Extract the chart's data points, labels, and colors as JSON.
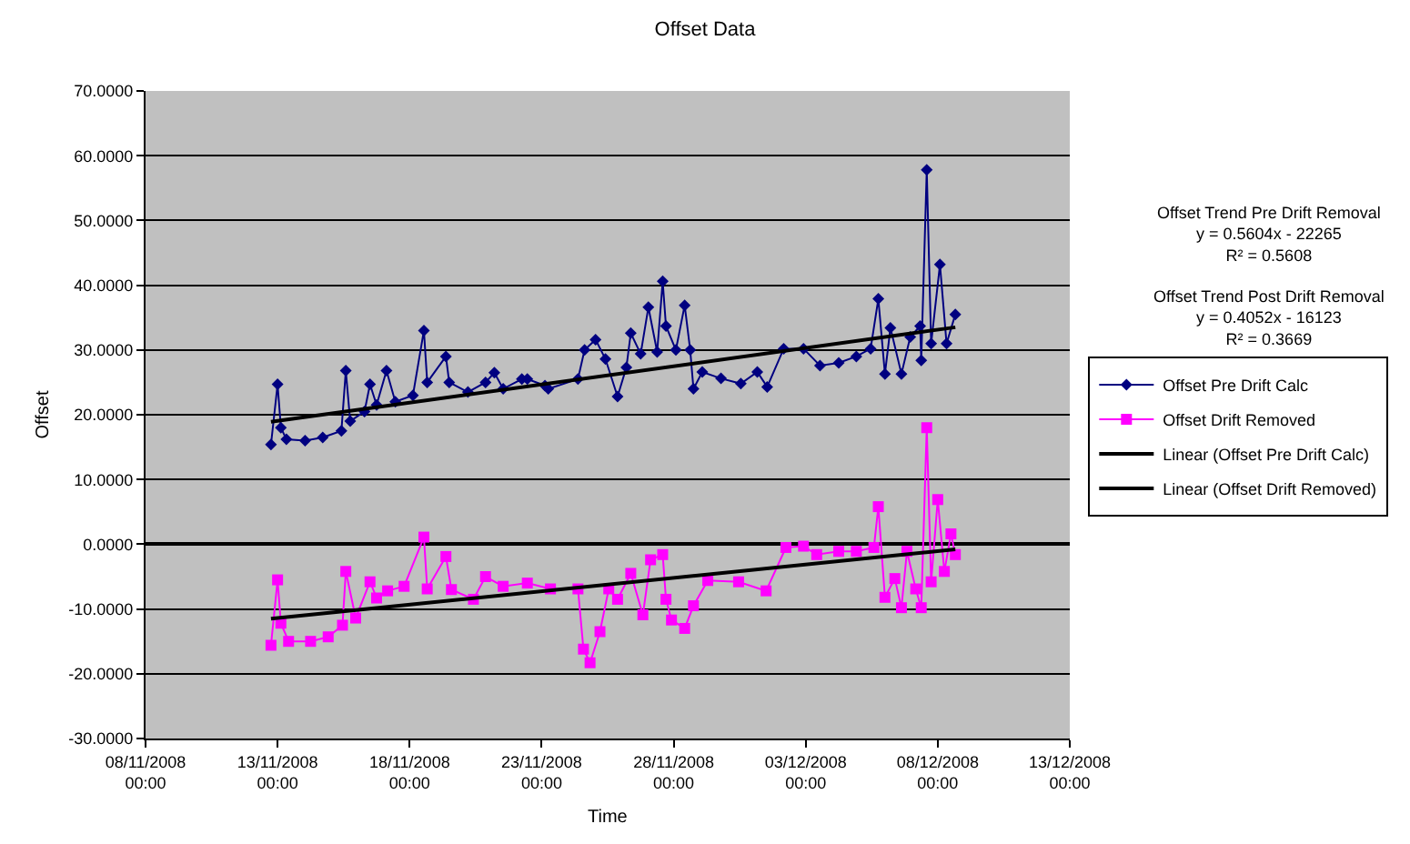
{
  "chart_data": {
    "type": "line",
    "title": "Offset Data",
    "xlabel": "Time",
    "ylabel": "Offset",
    "xlim": [
      "2008-11-08",
      "2008-12-13"
    ],
    "xticks": [
      {
        "value": "2008-11-08",
        "label": "08/11/2008\n00:00"
      },
      {
        "value": "2008-11-13",
        "label": "13/11/2008\n00:00"
      },
      {
        "value": "2008-11-18",
        "label": "18/11/2008\n00:00"
      },
      {
        "value": "2008-11-23",
        "label": "23/11/2008\n00:00"
      },
      {
        "value": "2008-11-28",
        "label": "28/11/2008\n00:00"
      },
      {
        "value": "2008-12-03",
        "label": "03/12/2008\n00:00"
      },
      {
        "value": "2008-12-08",
        "label": "08/12/2008\n00:00"
      },
      {
        "value": "2008-12-13",
        "label": "13/12/2008\n00:00"
      }
    ],
    "ylim": [
      -30,
      70
    ],
    "yticks": [
      {
        "value": -30,
        "label": "-30.0000"
      },
      {
        "value": -20,
        "label": "-20.0000"
      },
      {
        "value": -10,
        "label": "-10.0000"
      },
      {
        "value": 0,
        "label": "0.0000"
      },
      {
        "value": 10,
        "label": "10.0000"
      },
      {
        "value": 20,
        "label": "20.0000"
      },
      {
        "value": 30,
        "label": "30.0000"
      },
      {
        "value": 40,
        "label": "40.0000"
      },
      {
        "value": 50,
        "label": "50.0000"
      },
      {
        "value": 60,
        "label": "60.0000"
      },
      {
        "value": 70,
        "label": "70.0000"
      }
    ],
    "grid": "y",
    "legend": "right",
    "annotations": [
      "Offset Trend Pre Drift Removal\ny = 0.5604x - 22265\nR² = 0.5608",
      "Offset Trend Post Drift Removal\ny = 0.4052x - 16123\nR² = 0.3669"
    ],
    "series": [
      {
        "name": "Offset Pre Drift Calc",
        "color": "#000080",
        "marker": "diamond",
        "x": [
          "2008-11-12T18:00",
          "2008-11-13T00:00",
          "2008-11-13T03:00",
          "2008-11-13T08:00",
          "2008-11-14T01:00",
          "2008-11-14T17:00",
          "2008-11-15T10:00",
          "2008-11-15T14:00",
          "2008-11-15T18:00",
          "2008-11-16T07:00",
          "2008-11-16T12:00",
          "2008-11-16T18:00",
          "2008-11-17T03:00",
          "2008-11-17T11:00",
          "2008-11-18T03:00",
          "2008-11-18T13:00",
          "2008-11-18T16:00",
          "2008-11-19T09:00",
          "2008-11-19T12:00",
          "2008-11-20T05:00",
          "2008-11-20T21:00",
          "2008-11-21T05:00",
          "2008-11-21T13:00",
          "2008-11-22T06:00",
          "2008-11-22T11:00",
          "2008-11-23T03:00",
          "2008-11-23T06:00",
          "2008-11-24T09:00",
          "2008-11-24T15:00",
          "2008-11-25T01:00",
          "2008-11-25T10:00",
          "2008-11-25T21:00",
          "2008-11-26T05:00",
          "2008-11-26T09:00",
          "2008-11-26T18:00",
          "2008-11-27T01:00",
          "2008-11-27T09:00",
          "2008-11-27T14:00",
          "2008-11-27T17:00",
          "2008-11-28T02:00",
          "2008-11-28T10:00",
          "2008-11-28T15:00",
          "2008-11-28T18:00",
          "2008-11-29T02:00",
          "2008-11-29T19:00",
          "2008-11-30T13:00",
          "2008-12-01T04:00",
          "2008-12-01T13:00",
          "2008-12-02T04:00",
          "2008-12-02T22:00",
          "2008-12-03T13:00",
          "2008-12-04T06:00",
          "2008-12-04T22:00",
          "2008-12-05T11:00",
          "2008-12-05T18:00",
          "2008-12-06T00:00",
          "2008-12-06T05:00",
          "2008-12-06T15:00",
          "2008-12-06T23:00",
          "2008-12-07T08:00",
          "2008-12-07T09:00",
          "2008-12-07T14:00",
          "2008-12-07T18:00",
          "2008-12-08T02:00",
          "2008-12-08T08:00",
          "2008-12-08T16:00"
        ],
        "values": [
          15.4,
          24.7,
          18.0,
          16.2,
          16.0,
          16.5,
          17.5,
          26.8,
          19.0,
          20.5,
          24.7,
          21.5,
          26.8,
          22.0,
          23.0,
          33.0,
          25.0,
          29.0,
          25.0,
          23.5,
          25.0,
          26.5,
          24.0,
          25.5,
          25.5,
          24.5,
          24.0,
          25.5,
          30.0,
          31.6,
          28.6,
          22.8,
          27.3,
          32.6,
          29.4,
          36.6,
          29.7,
          40.6,
          33.7,
          30.0,
          36.9,
          30.0,
          24.0,
          26.6,
          25.6,
          24.8,
          26.6,
          24.3,
          30.2,
          30.2,
          27.6,
          28.0,
          29.0,
          30.2,
          37.9,
          26.3,
          33.4,
          26.3,
          32.0,
          33.7,
          28.4,
          57.8,
          31.0,
          43.2,
          31.0,
          35.5
        ]
      },
      {
        "name": "Offset Drift Removed",
        "color": "#ff00ff",
        "marker": "square",
        "x": [
          "2008-11-12T18:00",
          "2008-11-13T00:00",
          "2008-11-13T03:00",
          "2008-11-13T10:00",
          "2008-11-14T06:00",
          "2008-11-14T22:00",
          "2008-11-15T11:00",
          "2008-11-15T14:00",
          "2008-11-15T23:00",
          "2008-11-16T12:00",
          "2008-11-16T18:00",
          "2008-11-17T04:00",
          "2008-11-17T19:00",
          "2008-11-18T13:00",
          "2008-11-18T16:00",
          "2008-11-19T09:00",
          "2008-11-19T14:00",
          "2008-11-20T10:00",
          "2008-11-20T21:00",
          "2008-11-21T13:00",
          "2008-11-22T11:00",
          "2008-11-23T08:00",
          "2008-11-24T09:00",
          "2008-11-24T14:00",
          "2008-11-24T20:00",
          "2008-11-25T05:00",
          "2008-11-25T13:00",
          "2008-11-25T21:00",
          "2008-11-26T09:00",
          "2008-11-26T20:00",
          "2008-11-27T03:00",
          "2008-11-27T14:00",
          "2008-11-27T17:00",
          "2008-11-27T22:00",
          "2008-11-28T10:00",
          "2008-11-28T18:00",
          "2008-11-29T07:00",
          "2008-11-30T11:00",
          "2008-12-01T12:00",
          "2008-12-02T06:00",
          "2008-12-02T22:00",
          "2008-12-03T10:00",
          "2008-12-04T06:00",
          "2008-12-04T22:00",
          "2008-12-05T14:00",
          "2008-12-05T18:00",
          "2008-12-06T00:00",
          "2008-12-06T09:00",
          "2008-12-06T15:00",
          "2008-12-06T20:00",
          "2008-12-07T04:00",
          "2008-12-07T09:00",
          "2008-12-07T14:00",
          "2008-12-07T18:00",
          "2008-12-08T00:00",
          "2008-12-08T06:00",
          "2008-12-08T12:00",
          "2008-12-08T16:00"
        ],
        "values": [
          -15.6,
          -5.5,
          -12.2,
          -15.0,
          -15.0,
          -14.3,
          -12.5,
          -4.2,
          -11.4,
          -5.8,
          -8.3,
          -7.2,
          -6.5,
          1.1,
          -6.9,
          -1.9,
          -7.0,
          -8.5,
          -5.0,
          -6.5,
          -6.0,
          -6.9,
          -6.9,
          -16.2,
          -18.3,
          -13.5,
          -6.9,
          -8.5,
          -4.5,
          -10.9,
          -2.4,
          -1.6,
          -8.5,
          -11.7,
          -13.0,
          -9.5,
          -5.6,
          -5.8,
          -7.2,
          -0.5,
          -0.3,
          -1.6,
          -1.1,
          -1.1,
          -0.5,
          5.8,
          -8.2,
          -5.3,
          -9.8,
          -1.1,
          -6.9,
          -9.8,
          18.0,
          -5.8,
          6.9,
          -4.2,
          1.6,
          -1.6
        ]
      },
      {
        "name": "Linear (Offset Pre Drift Calc)",
        "color": "#000000",
        "x": [
          "2008-11-12T18:00",
          "2008-12-08T16:00"
        ],
        "values": [
          18.9,
          33.5
        ]
      },
      {
        "name": "Linear (Offset Drift Removed)",
        "color": "#000000",
        "x": [
          "2008-11-12T18:00",
          "2008-12-08T16:00"
        ],
        "values": [
          -11.5,
          -0.8
        ]
      }
    ]
  }
}
